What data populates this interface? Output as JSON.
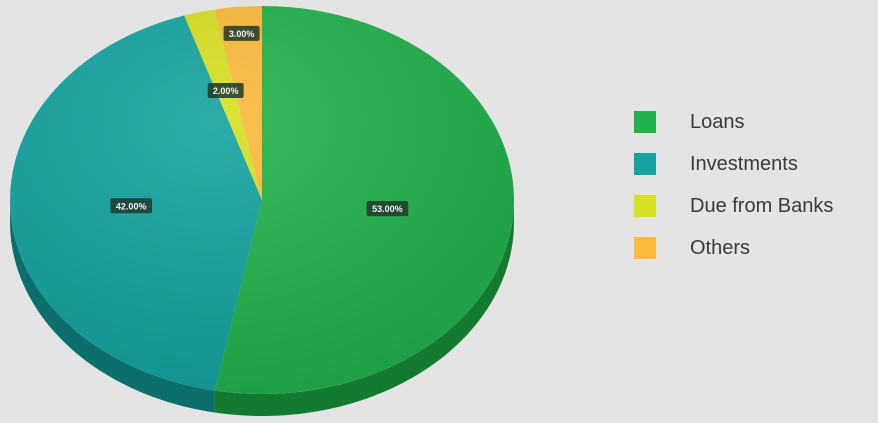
{
  "chart_data": {
    "type": "pie",
    "style": "3d",
    "categories": [
      "Loans",
      "Investments",
      "Due from Banks",
      "Others"
    ],
    "values": [
      53.0,
      42.0,
      2.0,
      3.0
    ],
    "colors": [
      "#22b24c",
      "#14a3a0",
      "#d8e022",
      "#fdba3c"
    ],
    "side_colors": [
      "#137a30",
      "#0c6f6c",
      "#9aa015",
      "#b98420"
    ],
    "legend_position": "right",
    "title": ""
  }
}
